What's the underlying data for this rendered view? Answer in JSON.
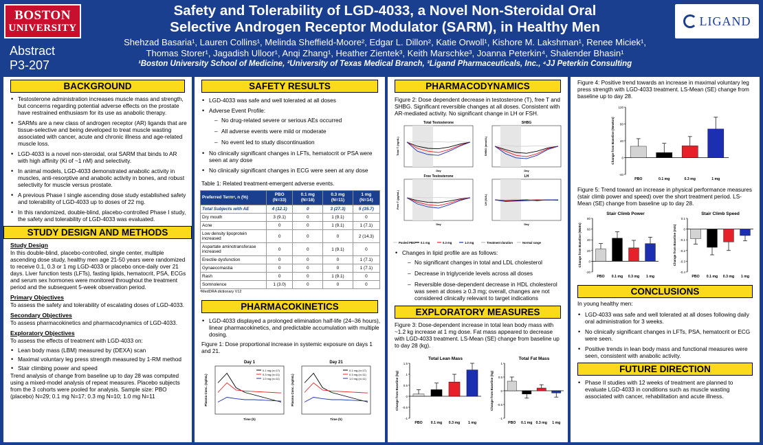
{
  "header": {
    "bu_line1": "BOSTON",
    "bu_line2": "UNIVERSITY",
    "abstract_line1": "Abstract",
    "abstract_line2": "P3-207",
    "title_line1": "Safety and Tolerability of LGD-4033, a Novel Non-Steroidal Oral",
    "title_line2": "Selective Androgen Receptor Modulator (SARM), in Healthy Men",
    "authors_line1": "Shehzad Basaria¹, Lauren Collins¹, Melinda Sheffield-Moore², Edgar L. Dillon², Katie Orwoll¹, Kishore M. Lakshman¹, Renee Miciek¹,",
    "authors_line2": "Thomas Storer¹, Jagadish Ulloor¹, Anqi Zhang¹, Heather Zientek³, Keith Marschke³, Joanna Peterkin⁴, Shalender Bhasin¹",
    "affiliations": "¹Boston University School of Medicine, ²University of Texas Medical Branch, ³Ligand Pharmaceuticals, Inc., ⁴JJ Peterkin Consulting",
    "ligand_logo": "LIGAND"
  },
  "background": {
    "heading": "BACKGROUND",
    "bullets": [
      "Testosterone administration increases muscle mass and strength, but concerns regarding potential adverse effects on the prostate have restrained enthusiasm for its use as anabolic therapy.",
      "SARMs are a new class of androgen receptor (AR) ligands that are tissue-selective and being developed to treat muscle wasting associated with cancer, acute and chronic illness and age-related muscle loss.",
      "LGD-4033 is a novel non-steroidal, oral SARM that binds to AR with high affinity (Ki of ~1 nM) and selectivity.",
      "In animal models, LGD-4033 demonstrated anabolic activity in muscles, anti-resorptive and anabolic activity in bones, and robust selectivity for muscle versus prostate.",
      "A previous Phase I single ascending dose study established safety and tolerability of LGD-4033 up to doses of 22 mg.",
      "In this randomized, double-blind, placebo-controlled Phase I study, the safety and tolerability of LGD-4033 was evaluated."
    ]
  },
  "design": {
    "heading": "STUDY DESIGN AND METHODS",
    "study_design_h": "Study Design",
    "study_design_p": "In this double-blind, placebo-controlled, single center, multiple ascending dose study, healthy men age 21-50 years were randomized to receive 0.1, 0.3 or 1 mg LGD-4033 or placebo once-daily over 21 days. Liver function tests (LFTs), fasting lipids, hematocrit, PSA, ECGs and serum sex hormones were monitored throughout the treatment period and the subsequent 5-week observation period.",
    "primary_h": "Primary Objectives",
    "primary_p": "To assess the safety and tolerability of escalating doses of LGD-4033.",
    "secondary_h": "Secondary Objectives",
    "secondary_p": "To assess pharmacokinetics and pharmacodynamics of LGD-4033.",
    "exploratory_h": "Exploratory Objectives",
    "exploratory_p": "To assess the effects of treatment with LGD-4033 on:",
    "exploratory_items": [
      "Lean body mass (LBM) measured by (DEXA) scan",
      "Maximal voluntary leg press strength measured by 1-RM method",
      "Stair climbing power and speed"
    ],
    "analysis_p": "Trend analysis of change from baseline up to day 28 was computed using a mixed-model analysis of repeat measures. Placebo subjects from the 3 cohorts were pooled for analysis. Sample size: PBO (placebo) N=29; 0.1 mg N=17; 0.3 mg N=10; 1.0  mg N=11"
  },
  "safety": {
    "heading": "SAFETY RESULTS",
    "b1": "LGD-4033 was safe and well tolerated at all doses",
    "b2": "Adverse Event Profile:",
    "sub": [
      "No drug-related severe or serious AEs occurred",
      "All adverse events were mild or moderate",
      "No event led to study discontinuation"
    ],
    "b3": "No clinically significant changes in LFTs, hematocrit or PSA were seen at any dose",
    "b4": "No clinically significant changes in ECG were seen at any dose",
    "table_caption": "Table 1: Related treatment-emergent adverse events.",
    "table_header": [
      "Preferred Termᵃ, n (%)",
      "PBO (N=33)",
      "0.1 mg (N=18)",
      "0.3 mg (N=11)",
      "1 mg (N=14)"
    ],
    "table_rows": [
      [
        "Total Subjects with AE",
        "4 (12.1)",
        "0",
        "3 (27.3)",
        "5 (35.7)"
      ],
      [
        "Dry mouth",
        "3 (9.1)",
        "0",
        "1 (9.1)",
        "0"
      ],
      [
        "Acne",
        "0",
        "0",
        "1 (9.1)",
        "1 (7.1)"
      ],
      [
        "Low density lipoprotein increased",
        "0",
        "0",
        "0",
        "2 (14.3)"
      ],
      [
        "Aspartate aminotransferase increased",
        "0",
        "0",
        "1 (9.1)",
        "0"
      ],
      [
        "Erectile dysfunction",
        "0",
        "0",
        "0",
        "1 (7.1)"
      ],
      [
        "Gynaecomastia",
        "0",
        "0",
        "0",
        "1 (7.1)"
      ],
      [
        "Rash",
        "0",
        "0",
        "1 (9.1)",
        "0"
      ],
      [
        "Somnolence",
        "1 (3.0)",
        "0",
        "0",
        "0"
      ]
    ],
    "table_footnote": "ᵃMedDRA dictionary V12"
  },
  "pk": {
    "heading": "PHARMACOKINETICS",
    "b1": "LGD-4033 displayed a prolonged elimination half-life (24–36 hours), linear pharmacokinetics, and predictable accumulation with multiple dosing.",
    "fig1_caption": "Figure 1:  Dose proportional increase in systemic exposure on days 1 and 21.",
    "day1": "Day 1",
    "day21": "Day 21",
    "ylabel": "Plasma Conc. (ng/mL)",
    "xlabel": "Time (h)",
    "legend": [
      "0.1 mg (n=17)",
      "0.3 mg (n=11)",
      "1.0 mg (n=11)"
    ]
  },
  "pd": {
    "heading": "PHARMACODYNAMICS",
    "fig2_caption": "Figure 2:  Dose dependent decrease in testosterone (T), free T and SHBG. Significant reversible changes at all doses. Consistent with AR-mediated activity. No significant change in LH or FSH.",
    "panel_titles": [
      "Total Testosterone",
      "SHBG",
      "Free Testosterone",
      "LH"
    ],
    "ylabels": [
      "Total T (ng/dL)",
      "SHBG (nmol/L)",
      "Free T (pg/mL)",
      "LH (IU/L)"
    ],
    "xlabel": "Day",
    "legend": [
      "Pooled PBO",
      "0.1 mg",
      "0.3 mg",
      "1.0 mg",
      "Treatment duration",
      "Normal range"
    ],
    "b1": "Changes in lipid profile are as follows:",
    "sub": [
      "No significant changes in total and LDL cholesterol",
      "Decrease in triglyceride levels across all doses",
      "Reversible dose-dependent decrease in HDL cholesterol was seen at doses ≥ 0.3 mg; overall, changes are not considered clinically relevant to target indications"
    ]
  },
  "exploratory": {
    "heading": "EXPLORATORY MEASURES",
    "fig3_caption": "Figure 3:  Dose-dependent increase in total lean body mass with ~1.2 kg increase at 1 mg dose.  Fat mass appeared to decrease with LGD-4033 treatment.  LS-Mean (SE) change from baseline up to day 28 (kg).",
    "lean_title": "Total Lean Mass",
    "fat_title": "Total Fat Mass",
    "ylabel": "Change from Baseline (kg)",
    "groups": [
      "PBO",
      "0.1 mg",
      "0.3 mg",
      "1 mg"
    ]
  },
  "col4": {
    "fig4_caption": "Figure 4:  Positive trend towards an increase in maximal voluntary leg press strength with LGD-4033 treatment.  LS-Mean (SE) change from baseline up to day 28.",
    "fig4_ylabel": "Change from Baseline (Newton)",
    "fig5_caption": "Figure 5:  Trend toward an increase in physical performance measures (stair climb power and speed) over the short treatment period. LS-Mean (SE) change from baseline up to day 28.",
    "power_title": "Stair Climb Power",
    "speed_title": "Stair Climb Speed",
    "power_ylabel": "Change from Baseline (Watts)",
    "speed_ylabel": "Change from Baseline (m/s)",
    "groups": [
      "PBO",
      "0.1 mg",
      "0.3 mg",
      "1 mg"
    ],
    "conclusions_heading": "CONCLUSIONS",
    "conclusions_intro": "In young healthy men:",
    "conclusions": [
      "LGD-4033 was safe and well tolerated at all doses following daily oral administration for 3 weeks.",
      "No clinically significant changes in LFTs, PSA, hematocrit or ECG were seen.",
      "Positive trends in lean body mass and functional measures were seen, consistent with anabolic activity."
    ],
    "future_heading": "FUTURE DIRECTION",
    "future": [
      "Phase II studies with 12 weeks of treatment are planned to evaluate LGD-4033 in conditions such as muscle wasting associated with cancer, rehabilitation and acute illness."
    ]
  },
  "colors": {
    "navy": "#1a3f8f",
    "gold": "#fbd91b",
    "bu_red": "#c8102e",
    "pbo": "#d3d3d3",
    "dose01": "#000000",
    "dose03": "#e8202a",
    "dose1": "#1c2fb0"
  },
  "chart_data": [
    {
      "type": "bar",
      "title": "Total Lean Mass",
      "categories": [
        "PBO",
        "0.1 mg",
        "0.3 mg",
        "1 mg"
      ],
      "values": [
        0.1,
        0.3,
        0.65,
        1.2
      ],
      "errors": [
        0.2,
        0.3,
        0.35,
        0.3
      ],
      "ylim": [
        -1.0,
        1.5
      ],
      "ylabel": "Change from Baseline (kg)"
    },
    {
      "type": "bar",
      "title": "Total Fat Mass",
      "categories": [
        "PBO",
        "0.1 mg",
        "0.3 mg",
        "1 mg"
      ],
      "values": [
        0.35,
        -0.12,
        0.1,
        -0.08
      ],
      "errors": [
        0.15,
        0.15,
        0.12,
        0.15
      ],
      "ylim": [
        -1.0,
        1.0
      ],
      "ylabel": "Change from Baseline (kg)"
    },
    {
      "type": "bar",
      "title": "",
      "categories": [
        "PBO",
        "0.1 mg",
        "0.3 mg",
        "1 mg"
      ],
      "values": [
        27,
        12,
        28,
        68
      ],
      "errors": [
        18,
        22,
        22,
        28
      ],
      "ylim": [
        -40,
        120
      ],
      "ylabel": "Change from Baseline (Newton)"
    },
    {
      "type": "bar",
      "title": "Stair Climb Power",
      "categories": [
        "PBO",
        "0.1 mg",
        "0.3 mg",
        "1 mg"
      ],
      "values": [
        23,
        43,
        25,
        33
      ],
      "errors": [
        10,
        12,
        14,
        12
      ],
      "ylim": [
        -20,
        80
      ],
      "ylabel": "Change from Baseline (Watts)"
    },
    {
      "type": "bar",
      "title": "Stair Climb Speed",
      "categories": [
        "PBO",
        "0.1 mg",
        "0.3 mg",
        "1 mg"
      ],
      "values": [
        -0.09,
        -0.17,
        -0.12,
        -0.06
      ],
      "errors": [
        0.05,
        0.07,
        0.08,
        0.05
      ],
      "ylim": [
        -0.4,
        0.1
      ],
      "ylabel": "Change from Baseline (m/s)"
    }
  ]
}
